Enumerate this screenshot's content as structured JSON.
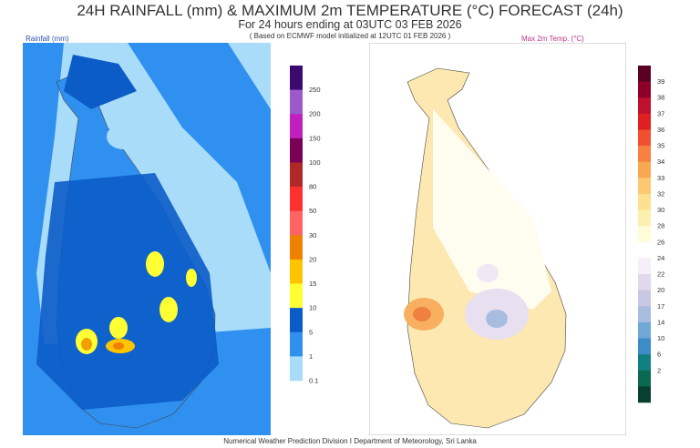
{
  "header": {
    "title": "24H RAINFALL (mm) & MAXIMUM 2m TEMPERATURE (°C) FORECAST (24h)",
    "subtitle": "For 24 hours ending at 03UTC 03 FEB 2026",
    "model_note": "( Based on ECMWF model initialized at 12UTC 01 FEB 2026 )"
  },
  "rain_panel": {
    "label": "Rainfall (mm)",
    "colorbar": {
      "labels": [
        "250",
        "200",
        "150",
        "100",
        "80",
        "50",
        "30",
        "20",
        "15",
        "10",
        "5",
        "1",
        "0.1"
      ],
      "colors": [
        "#3b0a6e",
        "#9b59c9",
        "#c020c0",
        "#7a0055",
        "#b02828",
        "#ff3030",
        "#ff6464",
        "#f08000",
        "#ffc400",
        "#ffff33",
        "#0c5cc8",
        "#3090f0",
        "#a8dcf8"
      ]
    }
  },
  "temp_panel": {
    "label": "Max 2m Temp. (°C)",
    "colorbar": {
      "labels": [
        "39",
        "38",
        "37",
        "36",
        "35",
        "34",
        "33",
        "32",
        "30",
        "28",
        "26",
        "24",
        "22",
        "20",
        "17",
        "14",
        "10",
        "6",
        "2"
      ],
      "colors": [
        "#5a0020",
        "#8e0028",
        "#c01030",
        "#e02020",
        "#f05030",
        "#f88040",
        "#f8a850",
        "#fcc870",
        "#fce090",
        "#fcf0b0",
        "#fffcd8",
        "#ffffff",
        "#f6eef8",
        "#e0d8ec",
        "#c8c8e4",
        "#a8bce0",
        "#70a8d8",
        "#3c8cc8",
        "#108080",
        "#0a6a50",
        "#084030"
      ]
    }
  },
  "footer": "Numerical Weather Prediction Division I Department of Meteorology, Sri Lanka"
}
